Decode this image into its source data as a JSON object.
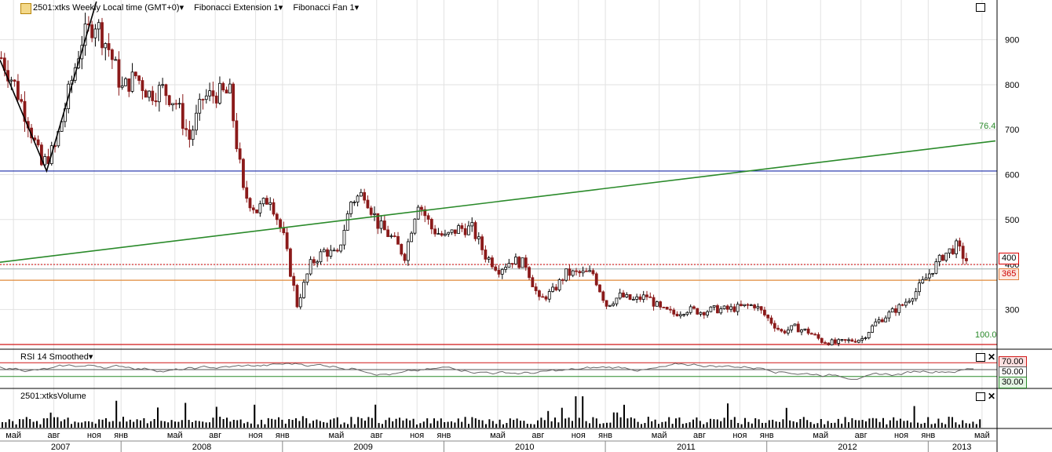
{
  "header": {
    "symbol": "2501:xtks Weekly Local time (GMT+0)",
    "study1": "Fibonacci Extension 1",
    "study2": "Fibonacci Fan 1"
  },
  "rsi_panel": {
    "title": "RSI 14 Smoothed"
  },
  "volume_panel": {
    "title": "2501:xtksVolume"
  },
  "markers": {
    "price_current": "400",
    "price_level": "365",
    "fib_fan_label": "76.4",
    "fib_ext_label": "100.0",
    "rsi_levels": [
      "70.00",
      "50.00",
      "30.00"
    ]
  },
  "colors": {
    "up_candle": "#000000",
    "down_candle": "#8b1a1a",
    "fan_line": "#2a8a2a",
    "blue_level": "#1a2aa8",
    "red_level": "#d01818",
    "orange_level": "#e08a3a"
  },
  "chart_data": {
    "type": "candlestick",
    "title": "2501:xtks Weekly Local time (GMT+0)",
    "y_ticks": [
      300,
      400,
      500,
      600,
      700,
      800,
      900
    ],
    "ylim": [
      215,
      985
    ],
    "x_month_labels": [
      "май",
      "авг",
      "ноя",
      "янв",
      "май",
      "авг",
      "ноя",
      "янв",
      "май",
      "авг",
      "ноя",
      "янв",
      "май",
      "авг",
      "ноя",
      "янв",
      "май",
      "авг",
      "ноя",
      "янв",
      "май",
      "авг",
      "ноя",
      "янв",
      "май"
    ],
    "x_year_labels": [
      "2007",
      "2008",
      "2009",
      "2010",
      "2011",
      "2012",
      "2013"
    ],
    "grid": true,
    "price_path": [
      {
        "t": "2007-04",
        "v": 860
      },
      {
        "t": "2007-05",
        "v": 800
      },
      {
        "t": "2007-06",
        "v": 720
      },
      {
        "t": "2007-07",
        "v": 620
      },
      {
        "t": "2007-08",
        "v": 660
      },
      {
        "t": "2007-09",
        "v": 780
      },
      {
        "t": "2007-10",
        "v": 900
      },
      {
        "t": "2007-11",
        "v": 940
      },
      {
        "t": "2007-12",
        "v": 880
      },
      {
        "t": "2008-01",
        "v": 790
      },
      {
        "t": "2008-02",
        "v": 820
      },
      {
        "t": "2008-03",
        "v": 780
      },
      {
        "t": "2008-04",
        "v": 790
      },
      {
        "t": "2008-05",
        "v": 760
      },
      {
        "t": "2008-06",
        "v": 680
      },
      {
        "t": "2008-07",
        "v": 770
      },
      {
        "t": "2008-08",
        "v": 780
      },
      {
        "t": "2008-09",
        "v": 780
      },
      {
        "t": "2008-10",
        "v": 560
      },
      {
        "t": "2008-11",
        "v": 520
      },
      {
        "t": "2008-12",
        "v": 550
      },
      {
        "t": "2009-01",
        "v": 460
      },
      {
        "t": "2009-02",
        "v": 310
      },
      {
        "t": "2009-03",
        "v": 400
      },
      {
        "t": "2009-04",
        "v": 430
      },
      {
        "t": "2009-05",
        "v": 420
      },
      {
        "t": "2009-06",
        "v": 540
      },
      {
        "t": "2009-07",
        "v": 560
      },
      {
        "t": "2009-08",
        "v": 490
      },
      {
        "t": "2009-09",
        "v": 460
      },
      {
        "t": "2009-10",
        "v": 420
      },
      {
        "t": "2009-11",
        "v": 540
      },
      {
        "t": "2009-12",
        "v": 480
      },
      {
        "t": "2010-01",
        "v": 460
      },
      {
        "t": "2010-02",
        "v": 480
      },
      {
        "t": "2010-03",
        "v": 480
      },
      {
        "t": "2010-04",
        "v": 420
      },
      {
        "t": "2010-05",
        "v": 390
      },
      {
        "t": "2010-06",
        "v": 410
      },
      {
        "t": "2010-07",
        "v": 400
      },
      {
        "t": "2010-08",
        "v": 320
      },
      {
        "t": "2010-09",
        "v": 340
      },
      {
        "t": "2010-10",
        "v": 380
      },
      {
        "t": "2010-11",
        "v": 380
      },
      {
        "t": "2010-12",
        "v": 380
      },
      {
        "t": "2011-01",
        "v": 310
      },
      {
        "t": "2011-02",
        "v": 330
      },
      {
        "t": "2011-03",
        "v": 320
      },
      {
        "t": "2011-04",
        "v": 330
      },
      {
        "t": "2011-05",
        "v": 300
      },
      {
        "t": "2011-06",
        "v": 290
      },
      {
        "t": "2011-07",
        "v": 300
      },
      {
        "t": "2011-08",
        "v": 295
      },
      {
        "t": "2011-09",
        "v": 300
      },
      {
        "t": "2011-10",
        "v": 300
      },
      {
        "t": "2011-11",
        "v": 305
      },
      {
        "t": "2011-12",
        "v": 310
      },
      {
        "t": "2012-01",
        "v": 280
      },
      {
        "t": "2012-02",
        "v": 250
      },
      {
        "t": "2012-03",
        "v": 260
      },
      {
        "t": "2012-04",
        "v": 250
      },
      {
        "t": "2012-05",
        "v": 230
      },
      {
        "t": "2012-06",
        "v": 225
      },
      {
        "t": "2012-07",
        "v": 230
      },
      {
        "t": "2012-08",
        "v": 235
      },
      {
        "t": "2012-09",
        "v": 270
      },
      {
        "t": "2012-10",
        "v": 290
      },
      {
        "t": "2012-11",
        "v": 310
      },
      {
        "t": "2012-12",
        "v": 340
      },
      {
        "t": "2013-01",
        "v": 380
      },
      {
        "t": "2013-02",
        "v": 420
      },
      {
        "t": "2013-03",
        "v": 440
      },
      {
        "t": "2013-04",
        "v": 400
      }
    ],
    "levels": [
      {
        "name": "blue",
        "value": 608
      },
      {
        "name": "current",
        "value": 400
      },
      {
        "name": "orange",
        "value": 365
      },
      {
        "name": "red",
        "value": 222
      }
    ],
    "rsi": {
      "levels": [
        70,
        50,
        30
      ]
    }
  }
}
